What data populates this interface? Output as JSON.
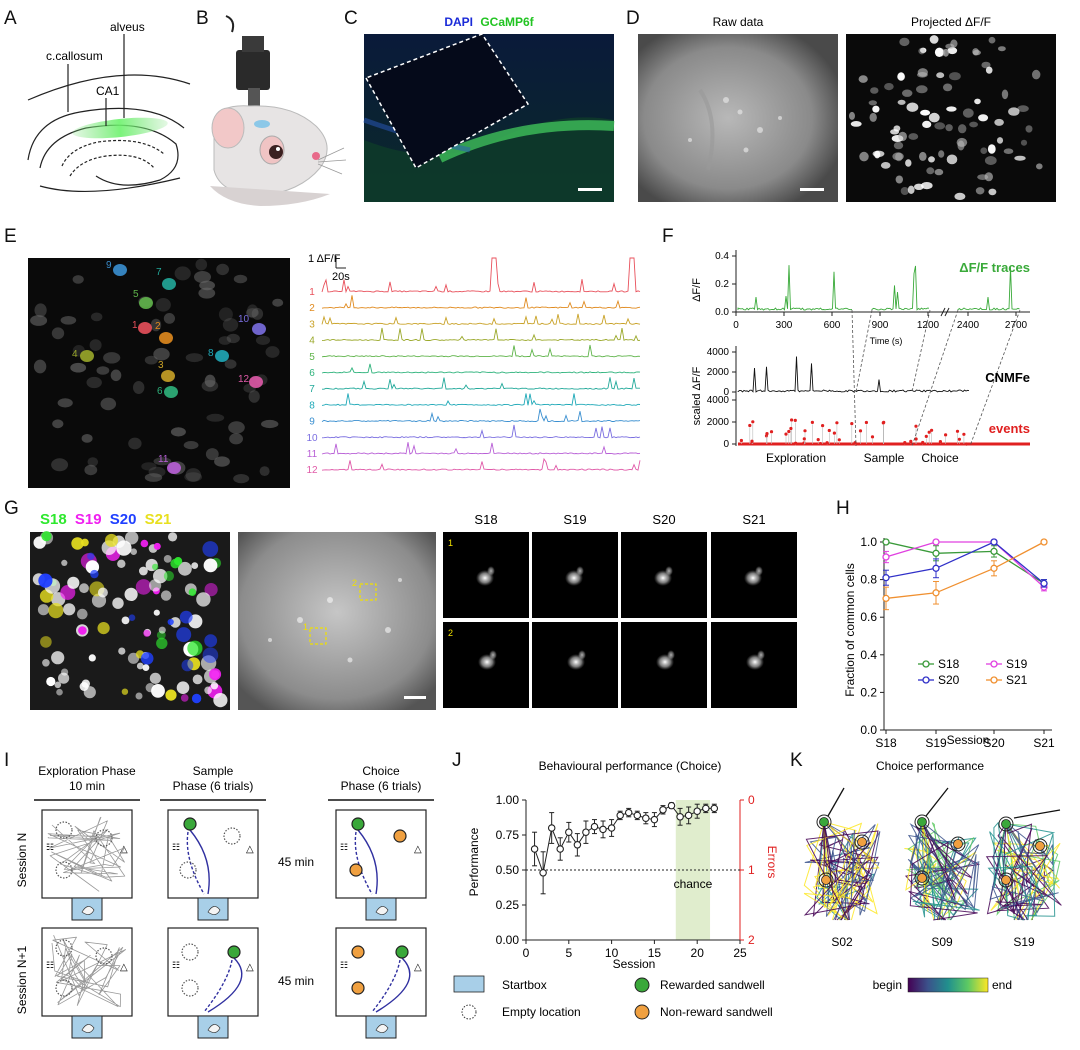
{
  "panel_letters": [
    "A",
    "B",
    "C",
    "D",
    "E",
    "F",
    "G",
    "H",
    "I",
    "J",
    "K"
  ],
  "panelA": {
    "labels": [
      "alveus",
      "c.callosum",
      "CA1"
    ]
  },
  "panelC": {
    "channel1": "DAPI",
    "channel2": "GCaMP6f"
  },
  "panelD": {
    "left_title": "Raw data",
    "right_title": "Projected ΔF/F"
  },
  "panelE": {
    "cell_ids": [
      "1",
      "2",
      "3",
      "4",
      "5",
      "6",
      "7",
      "8",
      "9",
      "10",
      "11",
      "12"
    ],
    "trace_colors": [
      "#e8505b",
      "#e08a1e",
      "#c9a227",
      "#9aa82a",
      "#5fb44a",
      "#2fb37c",
      "#22a99a",
      "#20a9b8",
      "#3a8fd0",
      "#7a6ee0",
      "#b85fd6",
      "#e05aa8"
    ],
    "scalebar_y": "1 ΔF/F",
    "scalebar_x": "20s"
  },
  "panelF": {
    "top_ylabel": "ΔF/F",
    "top_yticks": [
      "0.4",
      "0.2",
      "0.0"
    ],
    "top_xticks": [
      "0",
      "300",
      "600",
      "900",
      "1200",
      "2400",
      "2700"
    ],
    "top_xlabel": "Time (s)",
    "top_legend": "ΔF/F traces",
    "bottom_ylabel": "scaled ΔF/F",
    "cnmfe_yticks": [
      "4000",
      "2000",
      "0"
    ],
    "events_yticks": [
      "4000",
      "2000",
      "0"
    ],
    "cnmfe_label": "CNMFe",
    "events_label": "events",
    "phases": [
      "Exploration",
      "Sample",
      "Choice"
    ]
  },
  "panelG": {
    "session_labels": [
      "S18",
      "S19",
      "S20",
      "S21"
    ],
    "session_colors": [
      "#2ee82e",
      "#f020f0",
      "#2040ff",
      "#e8e020"
    ],
    "roi_labels": [
      "1",
      "2"
    ]
  },
  "panelH": {
    "chart_data": {
      "type": "line",
      "categories": [
        "S18",
        "S19",
        "S20",
        "S21"
      ],
      "xlabel": "Session",
      "ylabel": "Fraction of common cells",
      "ylim": [
        0.0,
        1.0
      ],
      "yticks": [
        "0.0",
        "0.2",
        "0.4",
        "0.6",
        "0.8",
        "1.0"
      ],
      "legend_placement": "bottom-inside",
      "series": [
        {
          "name": "S18",
          "color": "#3a9a3a",
          "values": [
            1.0,
            0.94,
            0.95,
            0.78
          ],
          "errors": [
            0.0,
            0.04,
            0.03,
            0.02
          ]
        },
        {
          "name": "S19",
          "color": "#e040e0",
          "values": [
            0.92,
            1.0,
            1.0,
            0.76
          ],
          "errors": [
            0.03,
            0.0,
            0.0,
            0.02
          ]
        },
        {
          "name": "S20",
          "color": "#3030c8",
          "values": [
            0.81,
            0.86,
            1.0,
            0.78
          ],
          "errors": [
            0.04,
            0.05,
            0.0,
            0.02
          ]
        },
        {
          "name": "S21",
          "color": "#f09030",
          "values": [
            0.7,
            0.73,
            0.86,
            1.0
          ],
          "errors": [
            0.06,
            0.06,
            0.04,
            0.0
          ]
        }
      ]
    }
  },
  "panelI": {
    "col_titles": [
      [
        "Exploration Phase",
        "10 min"
      ],
      [
        "Sample",
        "Phase (6 trials)"
      ],
      [
        "Choice",
        "Phase (6 trials)"
      ]
    ],
    "row_labels": [
      "Session N",
      "Session N+1"
    ],
    "delay": "45 min"
  },
  "panelJ": {
    "chart_data": {
      "type": "line",
      "title": "Behavioural performance (Choice)",
      "xlabel": "Session",
      "ylabel": "Performance",
      "y2label": "Errors",
      "xlim": [
        0,
        25
      ],
      "ylim": [
        0.0,
        1.0
      ],
      "xticks": [
        "0",
        "5",
        "10",
        "15",
        "20",
        "25"
      ],
      "yticks": [
        "0.00",
        "0.25",
        "0.50",
        "0.75",
        "1.00"
      ],
      "y2ticks": [
        "0",
        "1",
        "2"
      ],
      "chance_value": 0.5,
      "chance_label": "chance",
      "highlight_range": [
        17.5,
        21.5
      ],
      "x": [
        1,
        2,
        3,
        4,
        5,
        6,
        7,
        8,
        9,
        10,
        11,
        12,
        13,
        14,
        15,
        16,
        17,
        18,
        19,
        20,
        21,
        22
      ],
      "values": [
        0.65,
        0.48,
        0.8,
        0.65,
        0.77,
        0.68,
        0.77,
        0.81,
        0.79,
        0.8,
        0.89,
        0.91,
        0.89,
        0.87,
        0.86,
        0.93,
        0.96,
        0.88,
        0.89,
        0.92,
        0.94,
        0.94
      ],
      "errors": [
        0.12,
        0.15,
        0.11,
        0.08,
        0.07,
        0.08,
        0.08,
        0.05,
        0.06,
        0.06,
        0.03,
        0.03,
        0.03,
        0.04,
        0.05,
        0.03,
        0.02,
        0.06,
        0.06,
        0.05,
        0.03,
        0.03
      ]
    }
  },
  "panelK": {
    "title": "Choice performance",
    "sessions": [
      "S02",
      "S09",
      "S19"
    ],
    "colorbar_begin": "begin",
    "colorbar_end": "end"
  },
  "legend_I": {
    "startbox": "Startbox",
    "empty": "Empty location",
    "rewarded": "Rewarded sandwell",
    "nonreward": "Non-reward sandwell"
  }
}
